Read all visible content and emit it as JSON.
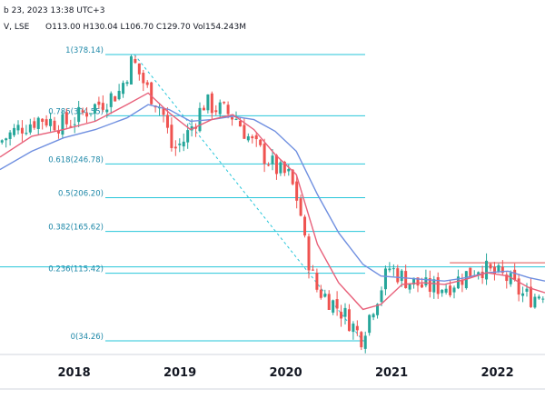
{
  "header": {
    "date_text": "b 23, 2023 13:38 UTC+3",
    "symbol_text": "V, LSE",
    "ohlcv_text": "O113.00 H130.04 L106.70 C129.70 Vol154.243M"
  },
  "colors": {
    "up": "#26a69a",
    "down": "#ef5350",
    "ma_fast": "#e8607a",
    "ma_slow": "#6f8fe0",
    "fib": "#26c6da",
    "resistance": "#e57373",
    "axis_line": "#d1d4dc"
  },
  "chart_data": {
    "type": "candlestick",
    "title": "",
    "x_ticks": [
      "2018",
      "2019",
      "2020",
      "2021",
      "2022"
    ],
    "x_range": [
      2017.3,
      2022.45
    ],
    "y_range": [
      0,
      420
    ],
    "fib_levels": [
      {
        "ratio": "1",
        "value": 378.14,
        "label": "1(378.14)"
      },
      {
        "ratio": "0.786",
        "value": 304.55,
        "label": "0.786(304.55)"
      },
      {
        "ratio": "0.618",
        "value": 246.78,
        "label": "0.618(246.78)"
      },
      {
        "ratio": "0.5",
        "value": 206.2,
        "label": "0.5(206.20)"
      },
      {
        "ratio": "0.382",
        "value": 165.62,
        "label": "0.382(165.62)"
      },
      {
        "ratio": "0.236",
        "value": 115.42,
        "label": "0.236(115.42)"
      },
      {
        "ratio": "0",
        "value": 34.26,
        "label": "0(34.26)"
      }
    ],
    "fib_start": [
      2018.57,
      378.14
    ],
    "fib_end": [
      2020.73,
      34.26
    ],
    "resistance_level": {
      "value": 128,
      "x_from": 2021.55,
      "x_to": 2022.45
    },
    "extra_level": {
      "value": 123,
      "x_from": 2017.3,
      "x_to": 2022.45
    },
    "price_path": [
      [
        2017.3,
        272
      ],
      [
        2017.5,
        290
      ],
      [
        2017.7,
        302
      ],
      [
        2017.9,
        294
      ],
      [
        2018.0,
        298
      ],
      [
        2018.15,
        312
      ],
      [
        2018.3,
        322
      ],
      [
        2018.45,
        334
      ],
      [
        2018.57,
        372
      ],
      [
        2018.7,
        338
      ],
      [
        2018.85,
        312
      ],
      [
        2018.95,
        262
      ],
      [
        2019.05,
        274
      ],
      [
        2019.15,
        296
      ],
      [
        2019.25,
        320
      ],
      [
        2019.4,
        312
      ],
      [
        2019.55,
        302
      ],
      [
        2019.7,
        272
      ],
      [
        2019.85,
        252
      ],
      [
        2019.95,
        238
      ],
      [
        2020.05,
        232
      ],
      [
        2020.15,
        196
      ],
      [
        2020.2,
        150
      ],
      [
        2020.3,
        98
      ],
      [
        2020.45,
        82
      ],
      [
        2020.6,
        62
      ],
      [
        2020.73,
        38
      ],
      [
        2020.85,
        78
      ],
      [
        2021.0,
        122
      ],
      [
        2021.15,
        108
      ],
      [
        2021.35,
        98
      ],
      [
        2021.55,
        100
      ],
      [
        2021.7,
        112
      ],
      [
        2021.85,
        124
      ],
      [
        2021.95,
        116
      ],
      [
        2022.1,
        110
      ],
      [
        2022.25,
        90
      ],
      [
        2022.35,
        86
      ],
      [
        2022.45,
        94
      ]
    ],
    "ma_fast": [
      [
        2017.3,
        255
      ],
      [
        2017.6,
        280
      ],
      [
        2017.9,
        288
      ],
      [
        2018.2,
        298
      ],
      [
        2018.5,
        318
      ],
      [
        2018.7,
        332
      ],
      [
        2018.9,
        308
      ],
      [
        2019.1,
        288
      ],
      [
        2019.3,
        300
      ],
      [
        2019.5,
        306
      ],
      [
        2019.7,
        288
      ],
      [
        2019.9,
        258
      ],
      [
        2020.1,
        234
      ],
      [
        2020.3,
        150
      ],
      [
        2020.5,
        104
      ],
      [
        2020.73,
        72
      ],
      [
        2020.9,
        78
      ],
      [
        2021.1,
        102
      ],
      [
        2021.3,
        104
      ],
      [
        2021.5,
        102
      ],
      [
        2021.7,
        108
      ],
      [
        2021.9,
        116
      ],
      [
        2022.1,
        112
      ],
      [
        2022.3,
        98
      ],
      [
        2022.45,
        92
      ]
    ],
    "ma_slow": [
      [
        2017.3,
        240
      ],
      [
        2017.6,
        262
      ],
      [
        2017.9,
        278
      ],
      [
        2018.2,
        288
      ],
      [
        2018.5,
        302
      ],
      [
        2018.7,
        318
      ],
      [
        2018.9,
        312
      ],
      [
        2019.1,
        298
      ],
      [
        2019.3,
        300
      ],
      [
        2019.5,
        304
      ],
      [
        2019.7,
        300
      ],
      [
        2019.9,
        286
      ],
      [
        2020.1,
        262
      ],
      [
        2020.3,
        210
      ],
      [
        2020.5,
        164
      ],
      [
        2020.73,
        126
      ],
      [
        2020.9,
        112
      ],
      [
        2021.1,
        110
      ],
      [
        2021.3,
        108
      ],
      [
        2021.5,
        106
      ],
      [
        2021.7,
        110
      ],
      [
        2021.9,
        116
      ],
      [
        2022.1,
        118
      ],
      [
        2022.3,
        110
      ],
      [
        2022.45,
        106
      ]
    ]
  }
}
